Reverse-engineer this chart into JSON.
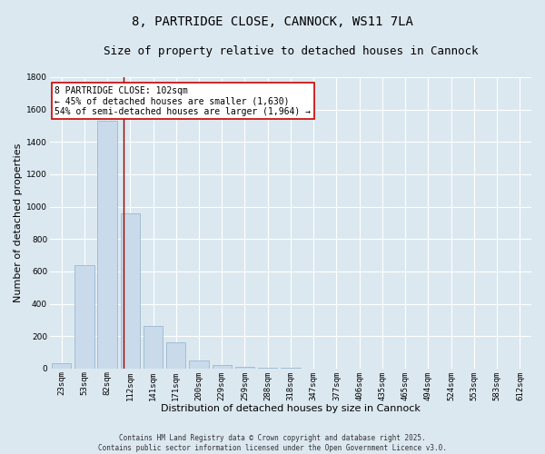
{
  "title": "8, PARTRIDGE CLOSE, CANNOCK, WS11 7LA",
  "subtitle": "Size of property relative to detached houses in Cannock",
  "xlabel": "Distribution of detached houses by size in Cannock",
  "ylabel": "Number of detached properties",
  "categories": [
    "23sqm",
    "53sqm",
    "82sqm",
    "112sqm",
    "141sqm",
    "171sqm",
    "200sqm",
    "229sqm",
    "259sqm",
    "288sqm",
    "318sqm",
    "347sqm",
    "377sqm",
    "406sqm",
    "435sqm",
    "465sqm",
    "494sqm",
    "524sqm",
    "553sqm",
    "583sqm",
    "612sqm"
  ],
  "values": [
    30,
    640,
    1530,
    960,
    260,
    160,
    50,
    20,
    10,
    5,
    2,
    1,
    0,
    0,
    0,
    0,
    0,
    0,
    0,
    0,
    0
  ],
  "bar_color": "#c9daea",
  "bar_edge_color": "#9ab8d0",
  "vline_x": 2.72,
  "vline_color": "#990000",
  "annotation_text": "8 PARTRIDGE CLOSE: 102sqm\n← 45% of detached houses are smaller (1,630)\n54% of semi-detached houses are larger (1,964) →",
  "annotation_box_color": "#ffffff",
  "annotation_box_edge": "#cc0000",
  "ylim": [
    0,
    1800
  ],
  "yticks": [
    0,
    200,
    400,
    600,
    800,
    1000,
    1200,
    1400,
    1600,
    1800
  ],
  "background_color": "#dce8f0",
  "plot_bg_color": "#dce8f0",
  "footer_line1": "Contains HM Land Registry data © Crown copyright and database right 2025.",
  "footer_line2": "Contains public sector information licensed under the Open Government Licence v3.0.",
  "title_fontsize": 10,
  "subtitle_fontsize": 9,
  "axis_label_fontsize": 8,
  "tick_fontsize": 6.5,
  "annotation_fontsize": 7,
  "footer_fontsize": 5.5
}
